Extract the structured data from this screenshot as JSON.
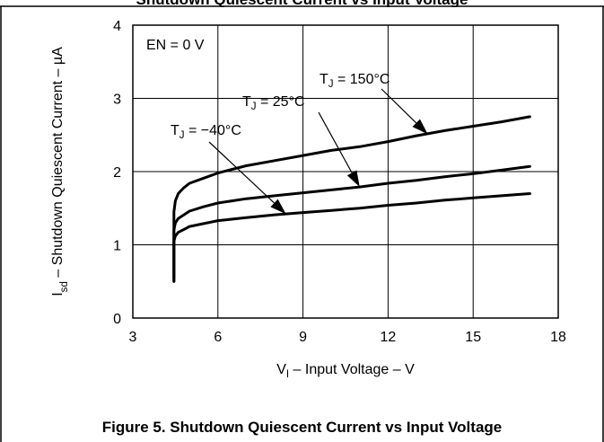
{
  "chart_data": {
    "type": "line",
    "title": "Shutdown Quiescent Current vs Input Voltage",
    "figure_caption": "Figure 5. Shutdown Quiescent Current vs Input Voltage",
    "top_strip_text": "Shutdown Quiescent Current vs Input Voltage",
    "xlabel": "V_I – Input Voltage – V",
    "ylabel": "I_sd – Shutdown Quiescent Current – µA",
    "xlim": [
      3,
      18
    ],
    "ylim": [
      0,
      4
    ],
    "x_ticks": [
      3,
      6,
      9,
      12,
      15,
      18
    ],
    "y_ticks": [
      0,
      1,
      2,
      3,
      4
    ],
    "grid": true,
    "annotations": [
      {
        "text": "EN = 0 V"
      },
      {
        "text": "T_J = 150°C",
        "points_to_series": 0
      },
      {
        "text": "T_J = 25°C",
        "points_to_series": 1
      },
      {
        "text": "T_J = −40°C",
        "points_to_series": 2
      }
    ],
    "series": [
      {
        "name": "T_J = 150°C",
        "x": [
          4.45,
          4.45,
          4.5,
          4.6,
          4.8,
          5.0,
          5.5,
          6.0,
          7.0,
          8.0,
          9.0,
          10.0,
          11.0,
          12.0,
          13.0,
          14.0,
          15.0,
          16.0,
          17.0
        ],
        "y": [
          0.55,
          1.45,
          1.6,
          1.7,
          1.78,
          1.84,
          1.91,
          1.98,
          2.08,
          2.15,
          2.22,
          2.29,
          2.34,
          2.41,
          2.49,
          2.56,
          2.62,
          2.68,
          2.75
        ]
      },
      {
        "name": "T_J = 25°C",
        "x": [
          4.45,
          4.45,
          4.5,
          4.6,
          4.8,
          5.0,
          5.5,
          6.0,
          7.0,
          8.0,
          9.0,
          10.0,
          11.0,
          12.0,
          13.0,
          14.0,
          15.0,
          16.0,
          17.0
        ],
        "y": [
          0.5,
          1.2,
          1.3,
          1.36,
          1.41,
          1.46,
          1.52,
          1.57,
          1.63,
          1.67,
          1.71,
          1.75,
          1.79,
          1.84,
          1.88,
          1.93,
          1.97,
          2.02,
          2.07
        ]
      },
      {
        "name": "T_J = −40°C",
        "x": [
          4.45,
          4.45,
          4.5,
          4.6,
          4.8,
          5.0,
          5.5,
          6.0,
          7.0,
          8.0,
          9.0,
          10.0,
          11.0,
          12.0,
          13.0,
          14.0,
          15.0,
          16.0,
          17.0
        ],
        "y": [
          0.5,
          1.05,
          1.12,
          1.17,
          1.21,
          1.25,
          1.29,
          1.33,
          1.37,
          1.41,
          1.44,
          1.47,
          1.5,
          1.54,
          1.57,
          1.61,
          1.64,
          1.67,
          1.7
        ]
      }
    ]
  },
  "colors": {
    "line": "#000000",
    "grid": "#000000",
    "background": "#ffffff"
  }
}
